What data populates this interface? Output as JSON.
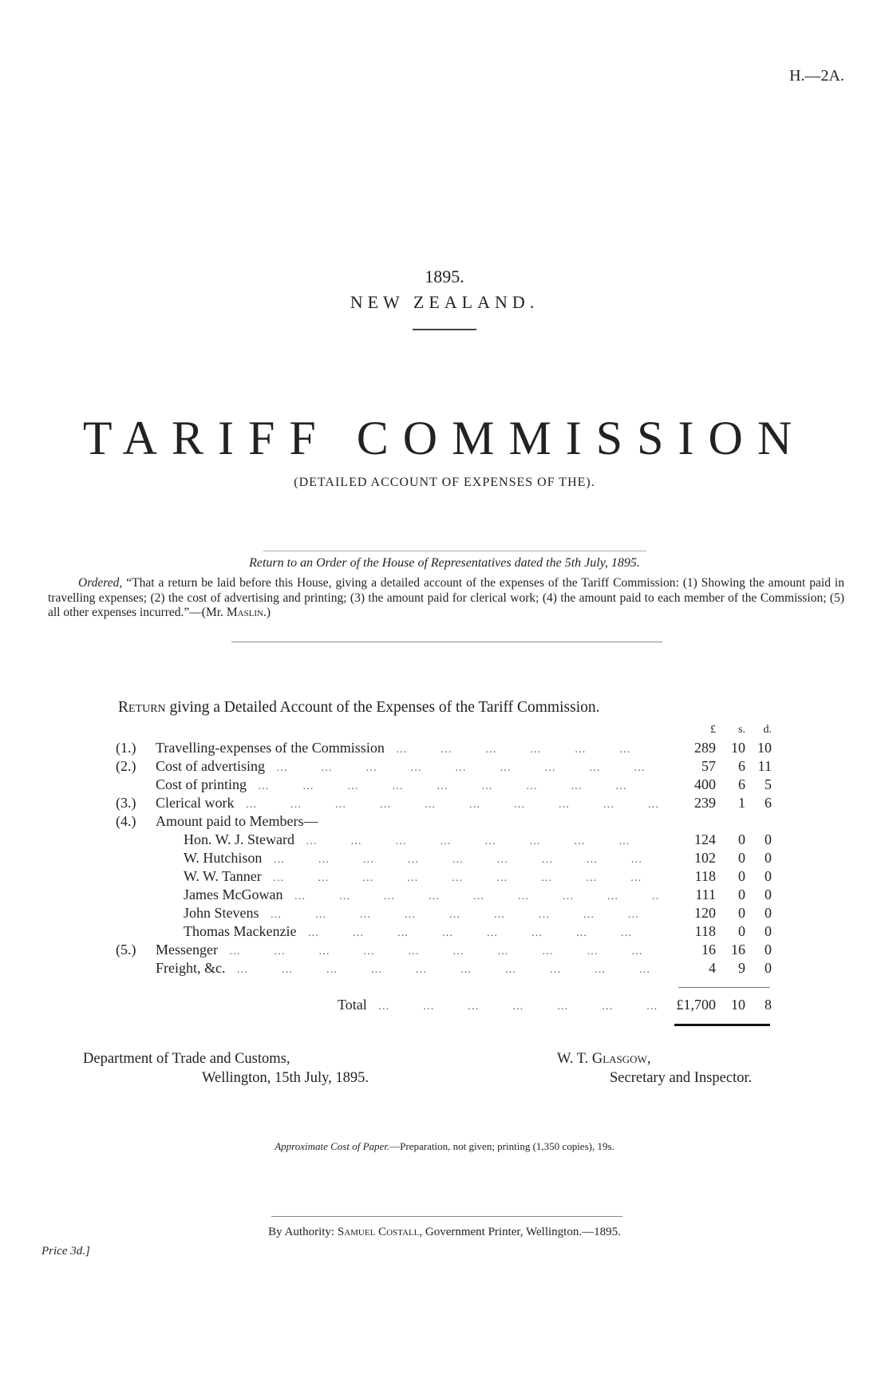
{
  "ref": "H.—2A.",
  "year": "1895.",
  "country": "NEW ZEALAND.",
  "title": "TARIFF COMMISSION",
  "subtitle": "(DETAILED ACCOUNT OF EXPENSES OF THE).",
  "order_line": "Return to an Order of the House of Representatives dated the 5th July, 1895.",
  "ordered_label": "Ordered,",
  "ordered_text": " “That a return be laid before this House, giving a detailed account of the expenses of the Tariff Commission: (1) Showing the amount paid in travelling expenses; (2) the cost of advertising and printing; (3) the amount paid for clerical work; (4) the amount paid to each member of the Commission; (5) all other expenses incurred.”—(Mr. ",
  "ordered_mover": "Maslin.)",
  "return_title_sc": "Return",
  "return_title": " giving a Detailed Account of the Expenses of the Tariff Commission.",
  "columns": {
    "pounds": "£",
    "shillings": "s.",
    "pence": "d."
  },
  "rows": [
    {
      "num": "(1.)",
      "label": "Travelling-expenses of the Commission",
      "l": "289",
      "s": "10",
      "d": "10",
      "indent": false
    },
    {
      "num": "(2.)",
      "label": "Cost of advertising",
      "l": "57",
      "s": "6",
      "d": "11",
      "indent": false
    },
    {
      "num": "",
      "label": "Cost of printing",
      "l": "400",
      "s": "6",
      "d": "5",
      "indent": false
    },
    {
      "num": "(3.)",
      "label": "Clerical work",
      "l": "239",
      "s": "1",
      "d": "6",
      "indent": false
    },
    {
      "num": "(4.)",
      "label": "Amount paid to Members—",
      "l": "",
      "s": "",
      "d": "",
      "indent": false
    },
    {
      "num": "",
      "label": "Hon. W. J. Steward",
      "l": "124",
      "s": "0",
      "d": "0",
      "indent": true
    },
    {
      "num": "",
      "label": "W. Hutchison",
      "l": "102",
      "s": "0",
      "d": "0",
      "indent": true
    },
    {
      "num": "",
      "label": "W. W. Tanner",
      "l": "118",
      "s": "0",
      "d": "0",
      "indent": true
    },
    {
      "num": "",
      "label": "James McGowan",
      "l": "111",
      "s": "0",
      "d": "0",
      "indent": true
    },
    {
      "num": "",
      "label": "John Stevens",
      "l": "120",
      "s": "0",
      "d": "0",
      "indent": true
    },
    {
      "num": "",
      "label": "Thomas Mackenzie",
      "l": "118",
      "s": "0",
      "d": "0",
      "indent": true
    },
    {
      "num": "(5.)",
      "label": "Messenger",
      "l": "16",
      "s": "16",
      "d": "0",
      "indent": false
    },
    {
      "num": "",
      "label": "Freight, &c.",
      "l": "4",
      "s": "9",
      "d": "0",
      "indent": false
    }
  ],
  "total": {
    "label": "Total",
    "l": "£1,700",
    "s": "10",
    "d": "8"
  },
  "dept_line1": "Department of Trade and Customs,",
  "dept_line2": "Wellington, 15th July, 1895.",
  "signer": "W. T. Glasgow,",
  "signer_title": "Secretary and Inspector.",
  "cost_label": "Approximate Cost of Paper.",
  "cost_text": "—Preparation, not given; printing (1,350 copies), 19s.",
  "authority_prefix": "By Authority: ",
  "authority_name": "Samuel Costall,",
  "authority_rest": " Government Printer, Wellington.—1895.",
  "price": "Price 3d.]"
}
